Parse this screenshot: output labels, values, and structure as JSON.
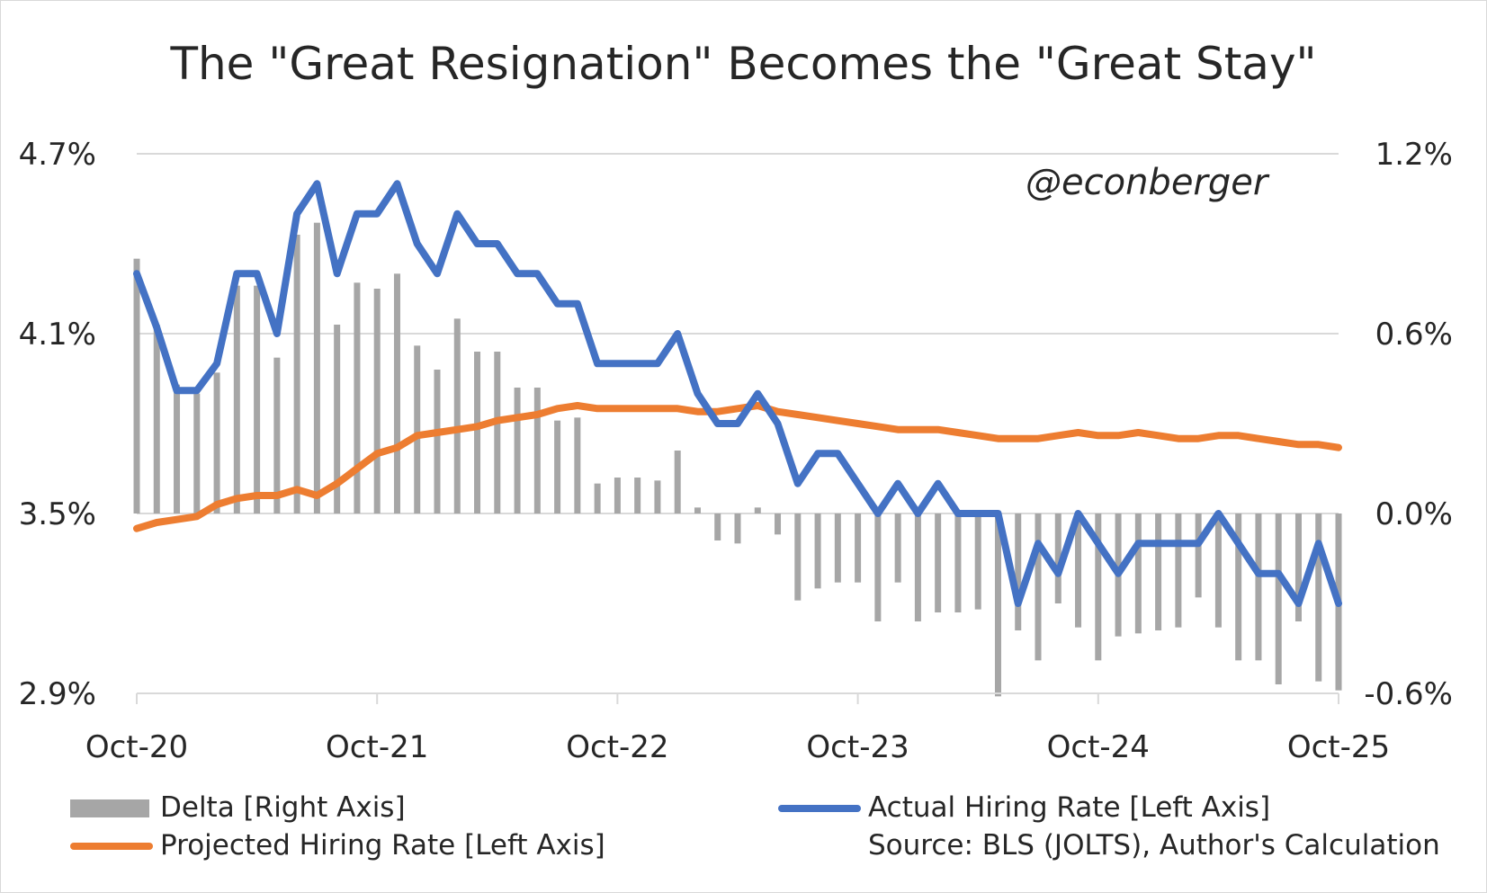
{
  "chart_data": {
    "type": "bar+line",
    "title": "The \"Great Resignation\" Becomes the \"Great Stay\"",
    "watermark": "@econberger",
    "source": "Source: BLS (JOLTS), Author's Calculation",
    "left_axis": {
      "ticks": [
        "4.7%",
        "4.1%",
        "3.5%",
        "2.9%"
      ],
      "tick_values": [
        4.7,
        4.1,
        3.5,
        2.9
      ],
      "range": [
        2.9,
        4.7
      ]
    },
    "right_axis": {
      "ticks": [
        "1.2%",
        "0.6%",
        "0.0%",
        "-0.6%"
      ],
      "tick_values": [
        1.2,
        0.6,
        0.0,
        -0.6
      ],
      "range": [
        -0.6,
        1.2
      ]
    },
    "x_ticks": [
      "Oct-20",
      "Oct-21",
      "Oct-22",
      "Oct-23",
      "Oct-24",
      "Oct-25"
    ],
    "x_tick_indices": [
      0,
      12,
      24,
      36,
      48,
      60
    ],
    "months": 61,
    "colors": {
      "delta": "#a6a6a6",
      "actual": "#4472c4",
      "projected": "#ed7d31",
      "grid": "#d9d9d9",
      "text": "#262626"
    },
    "series": [
      {
        "name": "Delta [Right Axis]",
        "axis": "right",
        "kind": "bar",
        "values": [
          0.85,
          0.63,
          0.43,
          0.4,
          0.47,
          0.76,
          0.76,
          0.52,
          0.93,
          0.97,
          0.63,
          0.77,
          0.75,
          0.8,
          0.56,
          0.48,
          0.65,
          0.54,
          0.54,
          0.42,
          0.42,
          0.31,
          0.32,
          0.1,
          0.12,
          0.12,
          0.11,
          0.21,
          0.02,
          -0.09,
          -0.1,
          0.02,
          -0.07,
          -0.29,
          -0.25,
          -0.23,
          -0.23,
          -0.36,
          -0.23,
          -0.36,
          -0.33,
          -0.33,
          -0.32,
          -0.61,
          -0.39,
          -0.49,
          -0.3,
          -0.38,
          -0.49,
          -0.41,
          -0.4,
          -0.39,
          -0.38,
          -0.28,
          -0.38,
          -0.49,
          -0.49,
          -0.57,
          -0.36,
          -0.56,
          -0.59
        ]
      },
      {
        "name": "Actual Hiring Rate [Left Axis]",
        "axis": "left",
        "kind": "line",
        "values": [
          4.3,
          4.12,
          3.91,
          3.91,
          4.0,
          4.3,
          4.3,
          4.1,
          4.5,
          4.6,
          4.3,
          4.5,
          4.5,
          4.6,
          4.4,
          4.3,
          4.5,
          4.4,
          4.4,
          4.3,
          4.3,
          4.2,
          4.2,
          4.0,
          4.0,
          4.0,
          4.0,
          4.1,
          3.9,
          3.8,
          3.8,
          3.9,
          3.8,
          3.6,
          3.7,
          3.7,
          3.6,
          3.5,
          3.6,
          3.5,
          3.6,
          3.5,
          3.5,
          3.5,
          3.2,
          3.4,
          3.3,
          3.5,
          3.4,
          3.3,
          3.4,
          3.4,
          3.4,
          3.4,
          3.5,
          3.4,
          3.3,
          3.3,
          3.2,
          3.4,
          3.2
        ]
      },
      {
        "name": "Projected Hiring Rate [Left Axis]",
        "axis": "left",
        "kind": "line",
        "values": [
          3.45,
          3.47,
          3.48,
          3.49,
          3.53,
          3.55,
          3.56,
          3.56,
          3.58,
          3.56,
          3.6,
          3.65,
          3.7,
          3.72,
          3.76,
          3.77,
          3.78,
          3.79,
          3.81,
          3.82,
          3.83,
          3.85,
          3.86,
          3.85,
          3.85,
          3.85,
          3.85,
          3.85,
          3.84,
          3.84,
          3.85,
          3.86,
          3.84,
          3.83,
          3.82,
          3.81,
          3.8,
          3.79,
          3.78,
          3.78,
          3.78,
          3.77,
          3.76,
          3.75,
          3.75,
          3.75,
          3.76,
          3.77,
          3.76,
          3.76,
          3.77,
          3.76,
          3.75,
          3.75,
          3.76,
          3.76,
          3.75,
          3.74,
          3.73,
          3.73,
          3.72
        ]
      }
    ]
  },
  "legend": {
    "delta_label": "Delta [Right Axis]",
    "actual_label": "Actual Hiring Rate [Left Axis]",
    "projected_label": "Projected Hiring Rate [Left Axis]"
  }
}
